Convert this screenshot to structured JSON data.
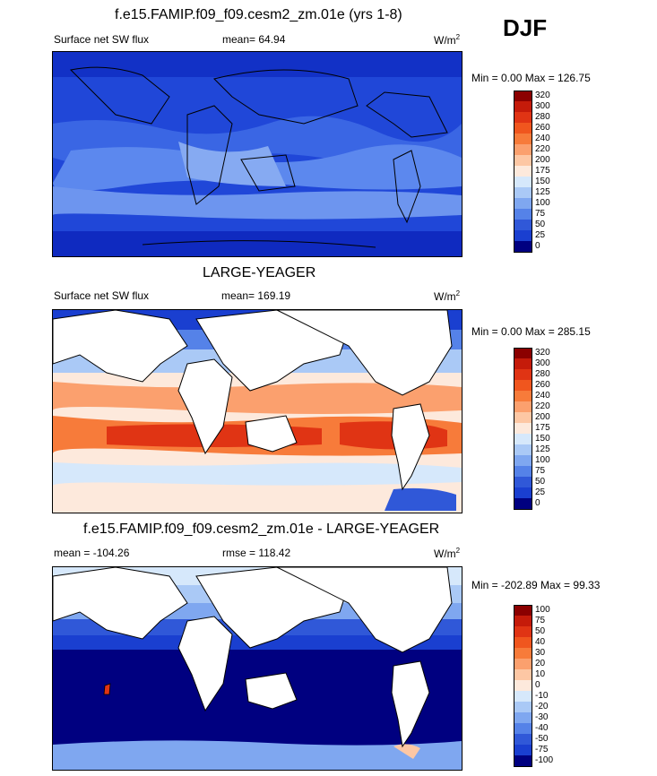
{
  "season": "DJF",
  "units": "W/m",
  "units_sup": "2",
  "panels": [
    {
      "title": "f.e15.FAMIP.f09_f09.cesm2_zm.01e (yrs 1-8)",
      "variable": "Surface net SW flux",
      "stat1": "mean=  64.94",
      "stat2": "",
      "minmax": "Min =   0.00 Max = 126.75",
      "colorbar": [
        "320",
        "300",
        "280",
        "260",
        "240",
        "220",
        "200",
        "175",
        "150",
        "125",
        "100",
        "75",
        "50",
        "25",
        "0"
      ]
    },
    {
      "title": "LARGE-YEAGER",
      "variable": "Surface net SW flux",
      "stat1": "mean= 169.19",
      "stat2": "",
      "minmax": "Min =   0.00 Max = 285.15",
      "colorbar": [
        "320",
        "300",
        "280",
        "260",
        "240",
        "220",
        "200",
        "175",
        "150",
        "125",
        "100",
        "75",
        "50",
        "25",
        "0"
      ]
    },
    {
      "title": "f.e15.FAMIP.f09_f09.cesm2_zm.01e - LARGE-YEAGER",
      "variable": "mean = -104.26",
      "stat1": "rmse = 118.42",
      "stat2": "",
      "minmax": "Min = -202.89 Max =  99.33",
      "colorbar": [
        "100",
        "75",
        "50",
        "40",
        "30",
        "20",
        "10",
        "0",
        "-10",
        "-20",
        "-30",
        "-40",
        "-50",
        "-75",
        "-100"
      ]
    }
  ],
  "colors": {
    "scale": [
      "#8b0000",
      "#c51b0a",
      "#e03414",
      "#f0561e",
      "#f77b3a",
      "#fba06e",
      "#fdc7a4",
      "#fde9dc",
      "#d6e8fb",
      "#aac9f6",
      "#7fa7f0",
      "#5582e8",
      "#3058d8",
      "#1a3fd0",
      "#000080"
    ]
  }
}
